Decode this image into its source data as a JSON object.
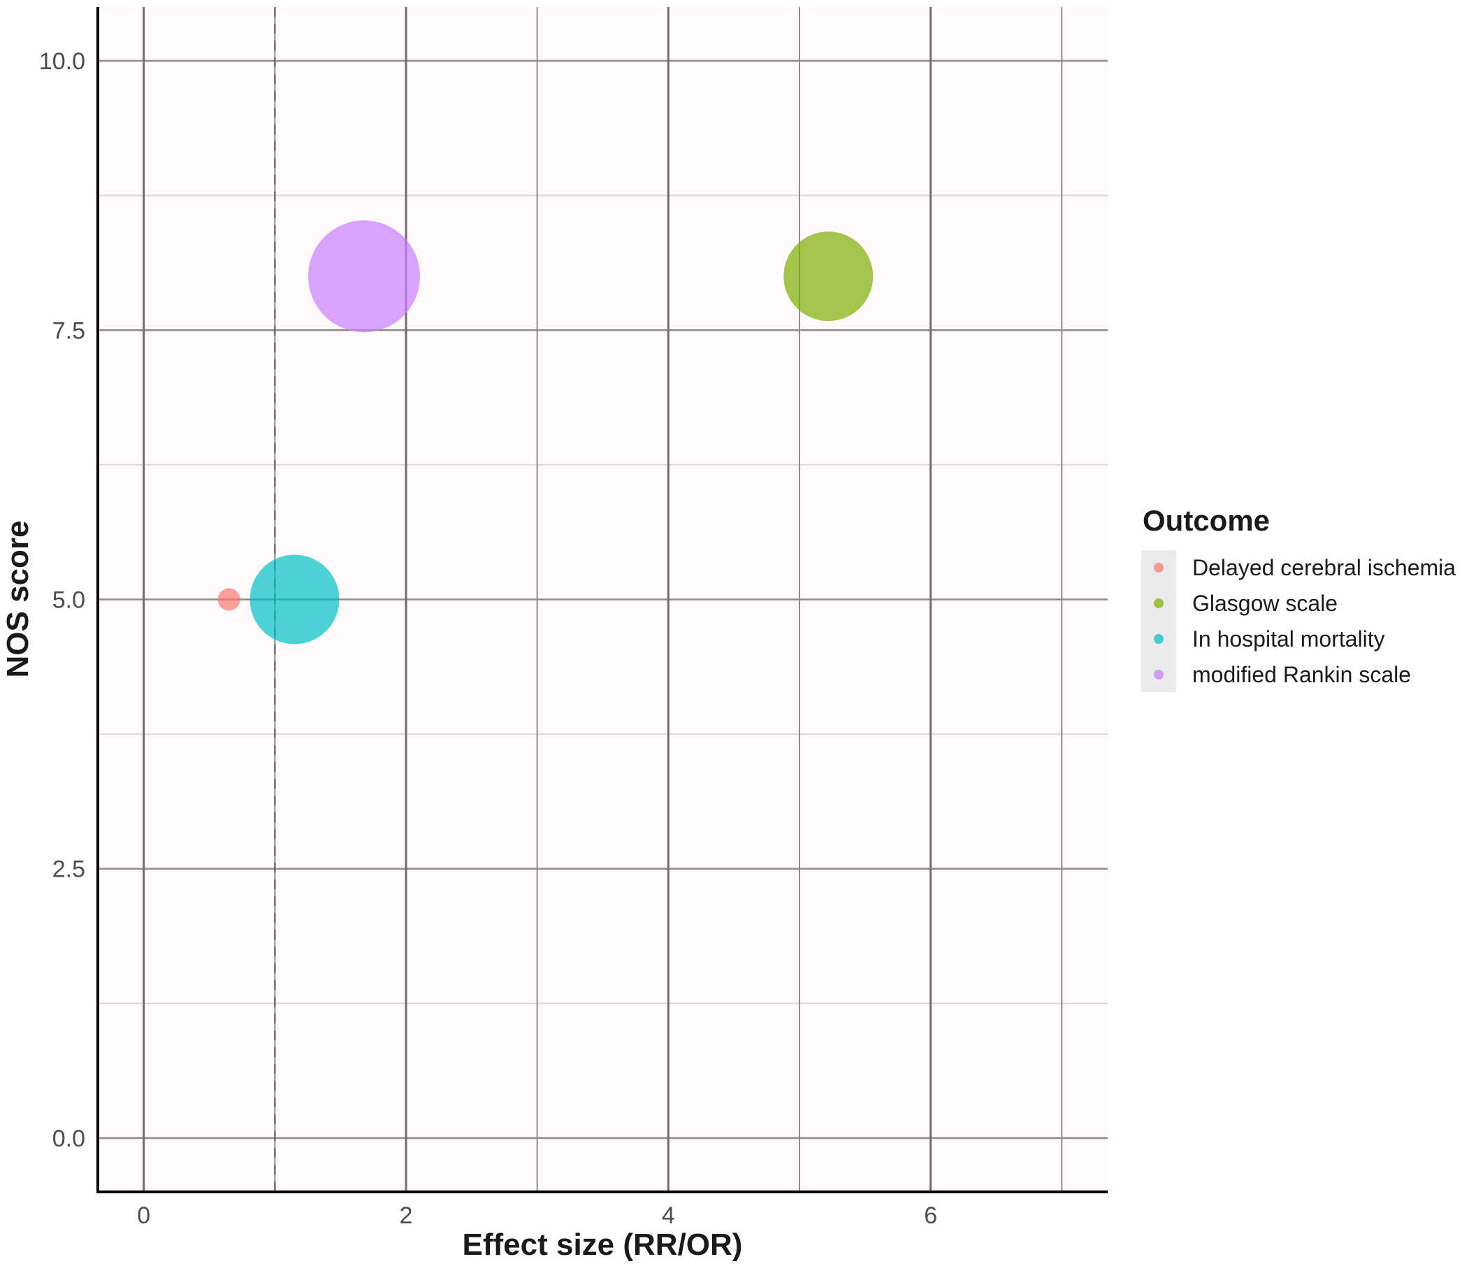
{
  "chart_data": {
    "type": "scatter",
    "title": "",
    "xlabel": "Effect size (RR/OR)",
    "ylabel": "NOS score",
    "xlim": [
      -0.35,
      7.35
    ],
    "ylim": [
      -0.5,
      10.5
    ],
    "x_ticks": [
      0,
      2,
      4,
      6
    ],
    "x_ticks_labels": [
      "0",
      "2",
      "4",
      "6"
    ],
    "x_minor": [
      1,
      3,
      5,
      7
    ],
    "y_ticks": [
      0,
      2.5,
      5,
      7.5,
      10
    ],
    "y_ticks_labels": [
      "0.0",
      "2.5",
      "5.0",
      "7.5",
      "10.0"
    ],
    "y_minor": [
      1.25,
      3.75,
      6.25,
      8.75
    ],
    "reference_line": {
      "x": 1,
      "style": "dashed"
    },
    "grid": true,
    "legend": {
      "title": "Outcome",
      "position": "right"
    },
    "series": [
      {
        "name": "Delayed cerebral ischemia",
        "color": "#F8766D",
        "points": [
          {
            "x": 0.65,
            "y": 5.0,
            "size": 0.25
          }
        ]
      },
      {
        "name": "Glasgow scale",
        "color": "#7CAE00",
        "points": [
          {
            "x": 5.22,
            "y": 8.0,
            "size": 1.0
          }
        ]
      },
      {
        "name": "In hospital mortality",
        "color": "#00BFC4",
        "points": [
          {
            "x": 1.15,
            "y": 5.0,
            "size": 1.0
          }
        ]
      },
      {
        "name": "modified Rankin scale",
        "color": "#C77CFF",
        "points": [
          {
            "x": 1.68,
            "y": 8.0,
            "size": 1.25
          }
        ]
      }
    ]
  }
}
